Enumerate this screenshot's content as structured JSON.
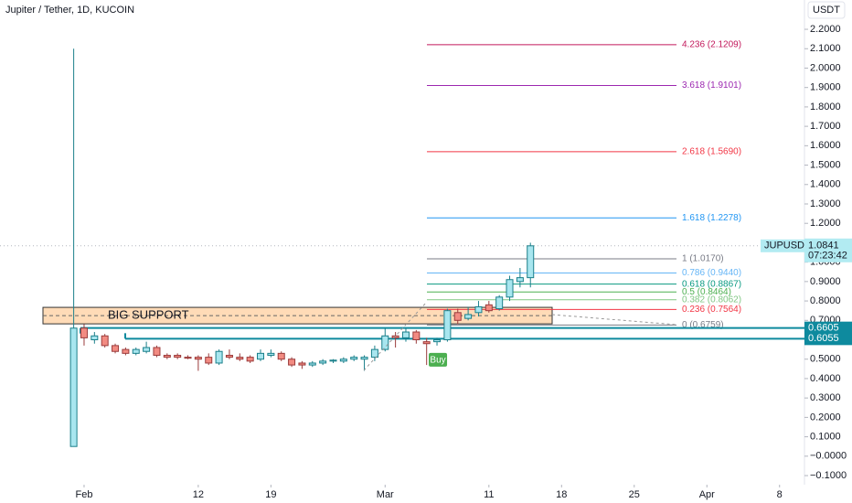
{
  "chart_data": {
    "type": "candlestick",
    "title": "Jupiter / Tether, 1D, KUCOIN",
    "currency": "USDT",
    "symbol": "JUPUSDT",
    "last_price": 1.0841,
    "countdown": "07:23:42",
    "up_color": "#a8e6ef",
    "down_color": "#f28b82",
    "open": [
      0.05,
      0.66,
      0.6,
      0.62,
      0.57,
      0.55,
      0.53,
      0.54,
      0.56,
      0.52,
      0.52,
      0.51,
      0.51,
      0.51,
      0.48,
      0.52,
      0.51,
      0.51,
      0.5,
      0.52,
      0.53,
      0.5,
      0.48,
      0.47,
      0.48,
      0.49,
      0.49,
      0.5,
      0.5,
      0.51,
      0.55,
      0.62,
      0.61,
      0.64,
      0.59,
      0.59,
      0.6,
      0.74,
      0.71,
      0.74,
      0.78,
      0.76,
      0.82,
      0.9,
      0.92
    ],
    "high": [
      2.1,
      0.68,
      0.64,
      0.63,
      0.58,
      0.56,
      0.56,
      0.59,
      0.57,
      0.53,
      0.53,
      0.52,
      0.52,
      0.53,
      0.55,
      0.55,
      0.53,
      0.52,
      0.55,
      0.55,
      0.54,
      0.51,
      0.49,
      0.49,
      0.5,
      0.5,
      0.51,
      0.52,
      0.52,
      0.57,
      0.66,
      0.64,
      0.66,
      0.65,
      0.61,
      0.61,
      0.76,
      0.76,
      0.77,
      0.8,
      0.8,
      0.83,
      0.93,
      0.97,
      1.1
    ],
    "low": [
      0.05,
      0.57,
      0.58,
      0.56,
      0.53,
      0.52,
      0.52,
      0.53,
      0.51,
      0.5,
      0.5,
      0.5,
      0.44,
      0.47,
      0.47,
      0.5,
      0.49,
      0.48,
      0.49,
      0.51,
      0.49,
      0.46,
      0.45,
      0.46,
      0.47,
      0.48,
      0.48,
      0.49,
      0.44,
      0.49,
      0.54,
      0.56,
      0.59,
      0.58,
      0.47,
      0.57,
      0.59,
      0.68,
      0.7,
      0.72,
      0.74,
      0.75,
      0.8,
      0.87,
      0.87
    ],
    "close": [
      0.66,
      0.61,
      0.62,
      0.57,
      0.54,
      0.53,
      0.55,
      0.56,
      0.52,
      0.51,
      0.51,
      0.505,
      0.5,
      0.48,
      0.54,
      0.51,
      0.5,
      0.49,
      0.53,
      0.53,
      0.5,
      0.47,
      0.47,
      0.48,
      0.49,
      0.495,
      0.5,
      0.51,
      0.51,
      0.55,
      0.62,
      0.61,
      0.64,
      0.6,
      0.58,
      0.6,
      0.75,
      0.7,
      0.73,
      0.77,
      0.75,
      0.82,
      0.91,
      0.92,
      1.0841
    ],
    "xlim": [
      -7.1,
      70.4
    ],
    "xticks": [
      {
        "value": 1,
        "label": "Feb"
      },
      {
        "value": 12,
        "label": "12"
      },
      {
        "value": 19,
        "label": "19"
      },
      {
        "value": 30,
        "label": "Mar"
      },
      {
        "value": 40,
        "label": "11"
      },
      {
        "value": 47,
        "label": "18"
      },
      {
        "value": 54,
        "label": "25"
      },
      {
        "value": 61,
        "label": "Apr"
      },
      {
        "value": 68,
        "label": "8"
      }
    ],
    "ylim": [
      -0.147,
      2.351
    ],
    "yticks": [
      {
        "value": 2.2,
        "label": "2.2000"
      },
      {
        "value": 2.1,
        "label": "2.1000"
      },
      {
        "value": 2.0,
        "label": "2.0000"
      },
      {
        "value": 1.9,
        "label": "1.9000"
      },
      {
        "value": 1.8,
        "label": "1.8000"
      },
      {
        "value": 1.7,
        "label": "1.7000"
      },
      {
        "value": 1.6,
        "label": "1.6000"
      },
      {
        "value": 1.5,
        "label": "1.5000"
      },
      {
        "value": 1.4,
        "label": "1.4000"
      },
      {
        "value": 1.3,
        "label": "1.3000"
      },
      {
        "value": 1.2,
        "label": "1.2000"
      },
      {
        "value": 1.1,
        "label": "1.1000"
      },
      {
        "value": 1.0,
        "label": "1.0000"
      },
      {
        "value": 0.9,
        "label": "0.9000"
      },
      {
        "value": 0.8,
        "label": "0.8000"
      },
      {
        "value": 0.7,
        "label": "0.7000"
      },
      {
        "value": 0.6,
        "label": "0.6000"
      },
      {
        "value": 0.5,
        "label": "0.5000"
      },
      {
        "value": 0.4,
        "label": "0.4000"
      },
      {
        "value": 0.3,
        "label": "0.3000"
      },
      {
        "value": 0.2,
        "label": "0.2000"
      },
      {
        "value": 0.1,
        "label": "0.1000"
      },
      {
        "value": 0,
        "label": "−0.0000"
      },
      {
        "value": -0.1,
        "label": "−0.1000"
      }
    ],
    "fib_levels": [
      {
        "label": "4.236 (2.1209)",
        "value": 2.1209,
        "color": "#c2185b"
      },
      {
        "label": "3.618 (1.9101)",
        "value": 1.9101,
        "color": "#9c27b0"
      },
      {
        "label": "2.618 (1.5690)",
        "value": 1.569,
        "color": "#f23645"
      },
      {
        "label": "1.618 (1.2278)",
        "value": 1.2278,
        "color": "#2196f3"
      },
      {
        "label": "1 (1.0170)",
        "value": 1.017,
        "color": "#787b86"
      },
      {
        "label": "0.786 (0.9440)",
        "value": 0.944,
        "color": "#64b5f6"
      },
      {
        "label": "0.618 (0.8867)",
        "value": 0.8867,
        "color": "#089981"
      },
      {
        "label": "0.5 (0.8464)",
        "value": 0.8464,
        "color": "#4caf50"
      },
      {
        "label": "0.382 (0.8062)",
        "value": 0.8062,
        "color": "#81c784"
      },
      {
        "label": "0.236 (0.7564)",
        "value": 0.7564,
        "color": "#f23645"
      },
      {
        "label": "0 (0.6759)",
        "value": 0.6759,
        "color": "#787b86"
      }
    ],
    "horizontal_lines": [
      0.6605,
      0.6055
    ],
    "support_zone": {
      "label": "BIG SUPPORT",
      "range": [
        0.682,
        0.767
      ]
    },
    "signal": {
      "label": "Buy",
      "x": 35
    }
  }
}
